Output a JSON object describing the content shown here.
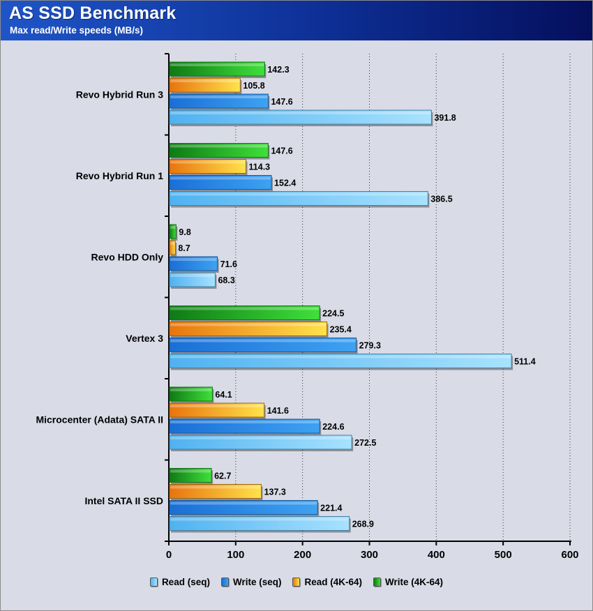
{
  "header": {
    "title": "AS SSD Benchmark",
    "subtitle": "Max read/Write speeds (MB/s)"
  },
  "chart_data": {
    "type": "bar",
    "orientation": "horizontal",
    "title": "AS SSD Benchmark",
    "subtitle": "Max read/Write speeds (MB/s)",
    "xlabel": "",
    "ylabel": "",
    "xlim": [
      0,
      600
    ],
    "ticks": [
      0,
      100,
      200,
      300,
      400,
      500,
      600
    ],
    "grid": "vertical-dotted",
    "legend_position": "bottom",
    "categories": [
      "Revo Hybrid Run 3",
      "Revo Hybrid Run 1",
      "Revo HDD Only",
      "Vertex 3",
      "Microcenter (Adata) SATA II",
      "Intel SATA II SSD"
    ],
    "series": [
      {
        "name": "Write (4K-64)",
        "color": "#1fb31f",
        "values": [
          142.3,
          147.6,
          9.8,
          224.5,
          64.1,
          62.7
        ]
      },
      {
        "name": "Read (4K-64)",
        "color": "#f59a14",
        "values": [
          105.8,
          114.3,
          8.7,
          235.4,
          141.6,
          137.3
        ]
      },
      {
        "name": "Write (seq)",
        "color": "#2a8ae6",
        "values": [
          147.6,
          152.4,
          71.6,
          279.3,
          224.6,
          221.4
        ]
      },
      {
        "name": "Read (seq)",
        "color": "#6cc6f7",
        "values": [
          391.8,
          386.5,
          68.3,
          511.4,
          272.5,
          268.9
        ]
      }
    ],
    "legend": [
      {
        "name": "Read (seq)",
        "color": "#6cc6f7"
      },
      {
        "name": "Write (seq)",
        "color": "#2a8ae6"
      },
      {
        "name": "Read (4K-64)",
        "color": "#f59a14"
      },
      {
        "name": "Write (4K-64)",
        "color": "#1fb31f"
      }
    ]
  }
}
